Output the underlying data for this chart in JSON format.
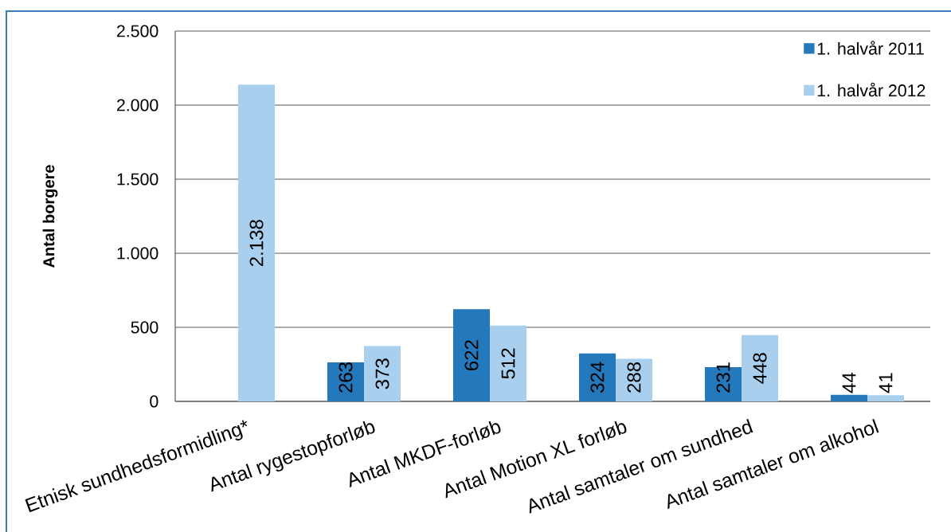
{
  "chart_data": {
    "type": "bar",
    "ylabel": "Antal borgere",
    "categories": [
      "Etnisk sundhedsformidling*",
      "Antal rygestopforløb",
      "Antal MKDF-forløb",
      "Antal Motion XL forløb",
      "Antal samtaler om sundhed",
      "Antal samtaler om alkohol"
    ],
    "series": [
      {
        "name": "1. halvår 2011",
        "color": "#2479bd",
        "values": [
          null,
          263,
          622,
          324,
          231,
          44
        ],
        "value_labels": [
          null,
          "263",
          "622",
          "324",
          "231",
          "44"
        ]
      },
      {
        "name": "1. halvår 2012",
        "color": "#a8d0ee",
        "values": [
          2138,
          373,
          512,
          288,
          448,
          41
        ],
        "value_labels": [
          "2.138",
          "373",
          "512",
          "288",
          "448",
          "41"
        ]
      }
    ],
    "ylim": [
      0,
      2500
    ],
    "yticks": [
      0,
      500,
      {
        "value": 1000,
        "label": "1.000"
      },
      {
        "value": 1500,
        "label": "1.500"
      },
      {
        "value": 2000,
        "label": "2.000"
      },
      {
        "value": 2500,
        "label": "2.500"
      }
    ],
    "grid": "y",
    "legend": "top right"
  }
}
